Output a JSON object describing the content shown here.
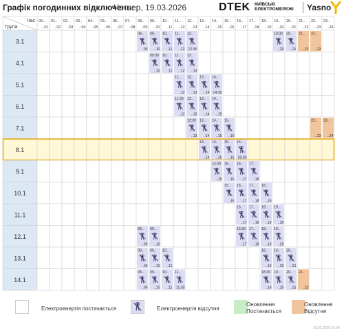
{
  "header": {
    "title": "Графік погодинних відключень:",
    "date": "Четвер, 19.03.2026",
    "dtek_logo": "DTEK",
    "dtek_sub_1": "КИЇВСЬКІ",
    "dtek_sub_2": "ЕЛЕКТРОМЕРЕЖІ",
    "yasno_logo": "Yasno"
  },
  "table": {
    "hour_label": "Час",
    "group_label": "Група",
    "columns": [
      {
        "top": "00..",
        "bot": "..01"
      },
      {
        "top": "01..",
        "bot": "..02"
      },
      {
        "top": "02..",
        "bot": "..03"
      },
      {
        "top": "03..",
        "bot": "..04"
      },
      {
        "top": "04..",
        "bot": "..05"
      },
      {
        "top": "05..",
        "bot": "..06"
      },
      {
        "top": "06..",
        "bot": "..07"
      },
      {
        "top": "07..",
        "bot": "..08"
      },
      {
        "top": "08..",
        "bot": "..09"
      },
      {
        "top": "09..",
        "bot": "..10"
      },
      {
        "top": "10..",
        "bot": ".11"
      },
      {
        "top": "11..",
        "bot": "..12"
      },
      {
        "top": "12..",
        "bot": "..13"
      },
      {
        "top": "13..",
        "bot": "..14"
      },
      {
        "top": "14..",
        "bot": "..15"
      },
      {
        "top": "15..",
        "bot": "..16"
      },
      {
        "top": "16..",
        "bot": "..17"
      },
      {
        "top": "17..",
        "bot": "..18"
      },
      {
        "top": "18..",
        "bot": "..19"
      },
      {
        "top": "19..",
        "bot": "..20"
      },
      {
        "top": "20..",
        "bot": "..21"
      },
      {
        "top": "21..",
        "bot": "..22"
      },
      {
        "top": "22..",
        "bot": "..23"
      },
      {
        "top": "23..",
        "bot": "..24"
      }
    ],
    "selected_group": "8.1",
    "groups": [
      {
        "name": "3.1",
        "cells": [
          {
            "h": 8,
            "type": "off",
            "top": "08..",
            "bot": ".09"
          },
          {
            "h": 9,
            "type": "off",
            "top": "09..",
            "bot": "..10"
          },
          {
            "h": 10,
            "type": "off",
            "top": "10..",
            "bot": ".11"
          },
          {
            "h": 11,
            "type": "off",
            "top": "11..",
            "bot": "..12"
          },
          {
            "h": 12,
            "type": "off",
            "top": "12..",
            "bot": "12:30"
          },
          {
            "h": 19,
            "type": "off",
            "top": "19:30",
            "bot": "..20"
          },
          {
            "h": 20,
            "type": "off",
            "top": "20..",
            "bot": "..21"
          },
          {
            "h": 21,
            "type": "ud",
            "top": "21..",
            "bot": "..22"
          },
          {
            "h": 22,
            "type": "ud",
            "top": "22..",
            "bot": "..23"
          }
        ]
      },
      {
        "name": "4.1",
        "cells": [
          {
            "h": 9,
            "type": "off",
            "top": "09:30",
            "bot": "..10"
          },
          {
            "h": 10,
            "type": "off",
            "top": "10..",
            "bot": ".11"
          },
          {
            "h": 11,
            "type": "off",
            "top": "11..",
            "bot": "..12"
          },
          {
            "h": 12,
            "type": "off",
            "top": "12..",
            "bot": "..13"
          }
        ]
      },
      {
        "name": "5.1",
        "cells": [
          {
            "h": 11,
            "type": "off",
            "top": "11..",
            "bot": "..12"
          },
          {
            "h": 12,
            "type": "off",
            "top": "12..",
            "bot": "..13"
          },
          {
            "h": 13,
            "type": "off",
            "top": "13..",
            "bot": "..14"
          },
          {
            "h": 14,
            "type": "off",
            "top": "14..",
            "bot": "14:30"
          }
        ]
      },
      {
        "name": "6.1",
        "cells": [
          {
            "h": 11,
            "type": "off",
            "top": "11:30",
            "bot": "..12"
          },
          {
            "h": 12,
            "type": "off",
            "top": "12..",
            "bot": "..13"
          },
          {
            "h": 13,
            "type": "off",
            "top": "13..",
            "bot": "..14"
          },
          {
            "h": 14,
            "type": "off",
            "top": "14..",
            "bot": "..15"
          }
        ]
      },
      {
        "name": "7.1",
        "cells": [
          {
            "h": 12,
            "type": "off",
            "top": "12:30",
            "bot": "..13"
          },
          {
            "h": 13,
            "type": "off",
            "top": "13..",
            "bot": "..14"
          },
          {
            "h": 14,
            "type": "off",
            "top": "14..",
            "bot": "..15"
          },
          {
            "h": 15,
            "type": "off",
            "top": "15..",
            "bot": "..16"
          },
          {
            "h": 22,
            "type": "ud",
            "top": "22..",
            "bot": "..23"
          },
          {
            "h": 23,
            "type": "ud",
            "top": "23..",
            "bot": "..24"
          }
        ]
      },
      {
        "name": "8.1",
        "cells": [
          {
            "h": 13,
            "type": "off",
            "top": "13..",
            "bot": "..14"
          },
          {
            "h": 14,
            "type": "off",
            "top": "14..",
            "bot": "..15"
          },
          {
            "h": 15,
            "type": "off",
            "top": "15..",
            "bot": "..16"
          },
          {
            "h": 16,
            "type": "off",
            "top": "16..",
            "bot": "16:30"
          }
        ]
      },
      {
        "name": "9.1",
        "cells": [
          {
            "h": 14,
            "type": "off",
            "top": "14:30",
            "bot": "..15"
          },
          {
            "h": 15,
            "type": "off",
            "top": "15..",
            "bot": "..16"
          },
          {
            "h": 16,
            "type": "off",
            "top": "16..",
            "bot": "..17"
          },
          {
            "h": 17,
            "type": "off",
            "top": "17..",
            "bot": "..18"
          }
        ]
      },
      {
        "name": "10.1",
        "cells": [
          {
            "h": 15,
            "type": "off",
            "top": "15..",
            "bot": "..16"
          },
          {
            "h": 16,
            "type": "off",
            "top": "16..",
            "bot": "..17"
          },
          {
            "h": 17,
            "type": "off",
            "top": "17..",
            "bot": "..18"
          },
          {
            "h": 18,
            "type": "off",
            "top": "18..",
            "bot": "..19"
          }
        ]
      },
      {
        "name": "11.1",
        "cells": [
          {
            "h": 16,
            "type": "off",
            "top": "16..",
            "bot": "..17"
          },
          {
            "h": 17,
            "type": "off",
            "top": "17..",
            "bot": "..18"
          },
          {
            "h": 18,
            "type": "off",
            "top": "18..",
            "bot": "..19"
          },
          {
            "h": 19,
            "type": "off",
            "top": "19..",
            "bot": "..20"
          }
        ]
      },
      {
        "name": "12.1",
        "cells": [
          {
            "h": 8,
            "type": "off",
            "top": "08..",
            "bot": "..09"
          },
          {
            "h": 9,
            "type": "off",
            "top": "09..",
            "bot": "..10"
          },
          {
            "h": 16,
            "type": "off",
            "top": "16:30",
            "bot": "..17"
          },
          {
            "h": 17,
            "type": "off",
            "top": "17..",
            "bot": "..18"
          },
          {
            "h": 18,
            "type": "off",
            "top": "18..",
            "bot": "..19"
          },
          {
            "h": 19,
            "type": "off",
            "top": "19..",
            "bot": "..20"
          }
        ]
      },
      {
        "name": "13.1",
        "cells": [
          {
            "h": 8,
            "type": "off",
            "top": "08..",
            "bot": "..09"
          },
          {
            "h": 9,
            "type": "off",
            "top": "09..",
            "bot": "..10"
          },
          {
            "h": 10,
            "type": "off",
            "top": "10..",
            "bot": "..11"
          },
          {
            "h": 18,
            "type": "off",
            "top": "18..",
            "bot": "..19"
          },
          {
            "h": 19,
            "type": "off",
            "top": "19..",
            "bot": "..20"
          },
          {
            "h": 20,
            "type": "off",
            "top": "20..",
            "bot": "..21"
          }
        ]
      },
      {
        "name": "14.1",
        "cells": [
          {
            "h": 8,
            "type": "off",
            "top": "08..",
            "bot": "..09"
          },
          {
            "h": 9,
            "type": "off",
            "top": "09..",
            "bot": "..10"
          },
          {
            "h": 10,
            "type": "off",
            "top": "10..",
            "bot": "..11"
          },
          {
            "h": 11,
            "type": "off",
            "top": "11..",
            "bot": "11:30"
          },
          {
            "h": 18,
            "type": "off",
            "top": "18:30",
            "bot": "..19"
          },
          {
            "h": 19,
            "type": "off",
            "top": "19..",
            "bot": "..20"
          },
          {
            "h": 20,
            "type": "off",
            "top": "20..",
            "bot": "..21"
          },
          {
            "h": 21,
            "type": "ud",
            "top": "21..",
            "bot": "..22"
          }
        ]
      }
    ]
  },
  "legend": {
    "on": "Електроенергія постачається",
    "off": "Електроенергія відсутня",
    "update_on_1": "Оновлення",
    "update_on_2": "Постачається",
    "update_off_1": "Оновлення",
    "update_off_2": "Відсутня"
  },
  "footer_timestamp": "19.03.2026   21:04",
  "colors": {
    "off_fill": "#dcdcf2",
    "update_on": "#c8ecc6",
    "update_off": "#f0c49c",
    "selected_row": "#fff8d6",
    "selected_border": "#e8a800",
    "label_bg": "#dde8f5",
    "grid_line": "#cfcfcf"
  },
  "icons": {
    "no_power": "tower-off-icon"
  }
}
